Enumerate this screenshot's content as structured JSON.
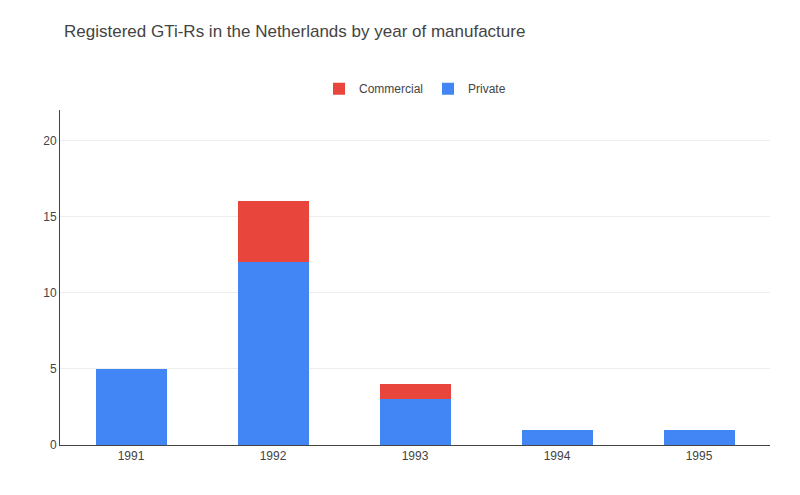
{
  "chart_data": {
    "type": "bar",
    "title": "Registered GTi-Rs in the Netherlands by year of manufacture",
    "categories": [
      "1991",
      "1992",
      "1993",
      "1994",
      "1995"
    ],
    "series": [
      {
        "name": "Private",
        "color": "#4285F4",
        "values": [
          5,
          12,
          3,
          1,
          1
        ]
      },
      {
        "name": "Commercial",
        "color": "#E8453C",
        "values": [
          0,
          4,
          1,
          0,
          0
        ]
      }
    ],
    "stacked": true,
    "ylim": [
      0,
      22
    ],
    "yticks": [
      0,
      5,
      10,
      15,
      20
    ],
    "grid": true,
    "legend": "top"
  }
}
